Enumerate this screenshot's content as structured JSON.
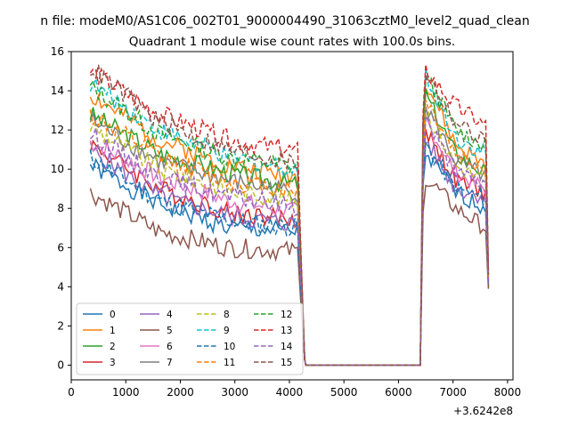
{
  "chart_data": {
    "type": "line",
    "title_top": "n file: modeM0/AS1C06_002T01_9000004490_31063cztM0_level2_quad_clean",
    "title": "Quadrant 1 module wise count rates with 100.0s bins.",
    "xlabel": "",
    "ylabel": "",
    "x_offset_label": "+3.6242e8",
    "xlim": [
      0,
      8100
    ],
    "ylim": [
      -0.75,
      16
    ],
    "xticks": [
      0,
      1000,
      2000,
      3000,
      4000,
      5000,
      6000,
      7000,
      8000
    ],
    "yticks": [
      0,
      2,
      4,
      6,
      8,
      10,
      12,
      14,
      16
    ],
    "grid": false,
    "legend_placement": "lower-left",
    "segment1": {
      "x_start": 350,
      "x_end": 4150,
      "step": 50
    },
    "segment2": {
      "x_start": 6400,
      "x_end": 7650,
      "step": 50
    },
    "zero_range": [
      4280,
      6380
    ],
    "series": [
      {
        "name": "0",
        "color": "#1f77b4",
        "dash": false,
        "a": [
          10.2,
          8.2,
          7.0,
          6.8
        ],
        "b": [
          9.2,
          10.8,
          8.8,
          8.0,
          4.0
        ]
      },
      {
        "name": "1",
        "color": "#ff7f0e",
        "dash": false,
        "a": [
          13.8,
          11.5,
          10.2,
          9.6
        ],
        "b": [
          11.5,
          14.5,
          11.2,
          10.2,
          4.5
        ]
      },
      {
        "name": "2",
        "color": "#2ca02c",
        "dash": false,
        "a": [
          12.8,
          10.8,
          9.8,
          9.2
        ],
        "b": [
          11.0,
          13.8,
          10.8,
          9.8,
          4.3
        ]
      },
      {
        "name": "3",
        "color": "#d62728",
        "dash": false,
        "a": [
          11.3,
          9.0,
          7.8,
          7.4
        ],
        "b": [
          9.8,
          12.0,
          9.4,
          8.8,
          4.0
        ]
      },
      {
        "name": "4",
        "color": "#9467bd",
        "dash": false,
        "a": [
          11.0,
          8.6,
          7.6,
          7.2
        ],
        "b": [
          9.4,
          11.5,
          9.0,
          8.6,
          4.0
        ]
      },
      {
        "name": "5",
        "color": "#8c564b",
        "dash": false,
        "a": [
          8.8,
          6.8,
          6.0,
          5.8
        ],
        "b": [
          7.8,
          9.6,
          8.0,
          7.0,
          3.9
        ]
      },
      {
        "name": "6",
        "color": "#e377c2",
        "dash": false,
        "a": [
          11.4,
          9.6,
          8.4,
          7.8
        ],
        "b": [
          10.0,
          12.5,
          9.8,
          9.0,
          4.2
        ]
      },
      {
        "name": "7",
        "color": "#7f7f7f",
        "dash": false,
        "a": [
          12.5,
          10.4,
          9.4,
          8.8
        ],
        "b": [
          10.5,
          13.2,
          10.4,
          9.6,
          4.3
        ]
      },
      {
        "name": "8",
        "color": "#bcbd22",
        "dash": true,
        "a": [
          12.2,
          10.0,
          8.9,
          8.4
        ],
        "b": [
          10.3,
          13.0,
          10.2,
          9.4,
          4.3
        ]
      },
      {
        "name": "9",
        "color": "#17becf",
        "dash": true,
        "a": [
          14.4,
          12.0,
          10.6,
          10.0
        ],
        "b": [
          12.0,
          14.8,
          11.6,
          10.8,
          4.6
        ]
      },
      {
        "name": "10",
        "color": "#1f77b4",
        "dash": true,
        "a": [
          10.6,
          8.4,
          7.4,
          7.0
        ],
        "b": [
          9.6,
          11.2,
          9.0,
          8.5,
          4.1
        ]
      },
      {
        "name": "11",
        "color": "#ff7f0e",
        "dash": true,
        "a": [
          12.8,
          10.6,
          9.4,
          8.9
        ],
        "b": [
          10.8,
          13.6,
          10.8,
          10.0,
          4.4
        ]
      },
      {
        "name": "12",
        "color": "#2ca02c",
        "dash": true,
        "a": [
          14.2,
          11.8,
          10.6,
          10.1
        ],
        "b": [
          12.2,
          14.8,
          12.0,
          11.2,
          4.7
        ]
      },
      {
        "name": "13",
        "color": "#d62728",
        "dash": true,
        "a": [
          15.0,
          12.8,
          11.5,
          10.9
        ],
        "b": [
          12.8,
          15.0,
          13.2,
          12.2,
          4.8
        ]
      },
      {
        "name": "14",
        "color": "#9467bd",
        "dash": true,
        "a": [
          11.8,
          9.6,
          8.6,
          8.1
        ],
        "b": [
          10.1,
          12.6,
          9.8,
          9.2,
          4.2
        ]
      },
      {
        "name": "15",
        "color": "#8c564b",
        "dash": true,
        "a": [
          15.2,
          12.4,
          11.0,
          10.3
        ],
        "b": [
          12.5,
          14.9,
          12.4,
          11.4,
          4.6
        ]
      }
    ]
  }
}
